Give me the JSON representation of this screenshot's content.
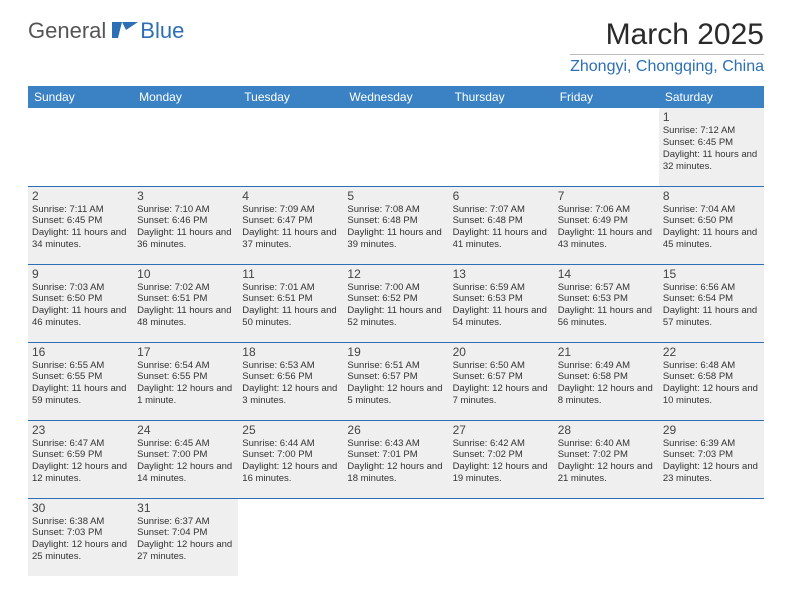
{
  "logo": {
    "part1": "General",
    "part2": "Blue"
  },
  "title": "March 2025",
  "location": "Zhongyi, Chongqing, China",
  "colors": {
    "header_bg": "#3a82c4",
    "accent": "#2d6fb5",
    "cell_bg": "#efefef",
    "page_bg": "#ffffff"
  },
  "daysOfWeek": [
    "Sunday",
    "Monday",
    "Tuesday",
    "Wednesday",
    "Thursday",
    "Friday",
    "Saturday"
  ],
  "weeks": [
    [
      null,
      null,
      null,
      null,
      null,
      null,
      {
        "n": "1",
        "sr": "7:12 AM",
        "ss": "6:45 PM",
        "dl": "11 hours and 32 minutes."
      }
    ],
    [
      {
        "n": "2",
        "sr": "7:11 AM",
        "ss": "6:45 PM",
        "dl": "11 hours and 34 minutes."
      },
      {
        "n": "3",
        "sr": "7:10 AM",
        "ss": "6:46 PM",
        "dl": "11 hours and 36 minutes."
      },
      {
        "n": "4",
        "sr": "7:09 AM",
        "ss": "6:47 PM",
        "dl": "11 hours and 37 minutes."
      },
      {
        "n": "5",
        "sr": "7:08 AM",
        "ss": "6:48 PM",
        "dl": "11 hours and 39 minutes."
      },
      {
        "n": "6",
        "sr": "7:07 AM",
        "ss": "6:48 PM",
        "dl": "11 hours and 41 minutes."
      },
      {
        "n": "7",
        "sr": "7:06 AM",
        "ss": "6:49 PM",
        "dl": "11 hours and 43 minutes."
      },
      {
        "n": "8",
        "sr": "7:04 AM",
        "ss": "6:50 PM",
        "dl": "11 hours and 45 minutes."
      }
    ],
    [
      {
        "n": "9",
        "sr": "7:03 AM",
        "ss": "6:50 PM",
        "dl": "11 hours and 46 minutes."
      },
      {
        "n": "10",
        "sr": "7:02 AM",
        "ss": "6:51 PM",
        "dl": "11 hours and 48 minutes."
      },
      {
        "n": "11",
        "sr": "7:01 AM",
        "ss": "6:51 PM",
        "dl": "11 hours and 50 minutes."
      },
      {
        "n": "12",
        "sr": "7:00 AM",
        "ss": "6:52 PM",
        "dl": "11 hours and 52 minutes."
      },
      {
        "n": "13",
        "sr": "6:59 AM",
        "ss": "6:53 PM",
        "dl": "11 hours and 54 minutes."
      },
      {
        "n": "14",
        "sr": "6:57 AM",
        "ss": "6:53 PM",
        "dl": "11 hours and 56 minutes."
      },
      {
        "n": "15",
        "sr": "6:56 AM",
        "ss": "6:54 PM",
        "dl": "11 hours and 57 minutes."
      }
    ],
    [
      {
        "n": "16",
        "sr": "6:55 AM",
        "ss": "6:55 PM",
        "dl": "11 hours and 59 minutes."
      },
      {
        "n": "17",
        "sr": "6:54 AM",
        "ss": "6:55 PM",
        "dl": "12 hours and 1 minute."
      },
      {
        "n": "18",
        "sr": "6:53 AM",
        "ss": "6:56 PM",
        "dl": "12 hours and 3 minutes."
      },
      {
        "n": "19",
        "sr": "6:51 AM",
        "ss": "6:57 PM",
        "dl": "12 hours and 5 minutes."
      },
      {
        "n": "20",
        "sr": "6:50 AM",
        "ss": "6:57 PM",
        "dl": "12 hours and 7 minutes."
      },
      {
        "n": "21",
        "sr": "6:49 AM",
        "ss": "6:58 PM",
        "dl": "12 hours and 8 minutes."
      },
      {
        "n": "22",
        "sr": "6:48 AM",
        "ss": "6:58 PM",
        "dl": "12 hours and 10 minutes."
      }
    ],
    [
      {
        "n": "23",
        "sr": "6:47 AM",
        "ss": "6:59 PM",
        "dl": "12 hours and 12 minutes."
      },
      {
        "n": "24",
        "sr": "6:45 AM",
        "ss": "7:00 PM",
        "dl": "12 hours and 14 minutes."
      },
      {
        "n": "25",
        "sr": "6:44 AM",
        "ss": "7:00 PM",
        "dl": "12 hours and 16 minutes."
      },
      {
        "n": "26",
        "sr": "6:43 AM",
        "ss": "7:01 PM",
        "dl": "12 hours and 18 minutes."
      },
      {
        "n": "27",
        "sr": "6:42 AM",
        "ss": "7:02 PM",
        "dl": "12 hours and 19 minutes."
      },
      {
        "n": "28",
        "sr": "6:40 AM",
        "ss": "7:02 PM",
        "dl": "12 hours and 21 minutes."
      },
      {
        "n": "29",
        "sr": "6:39 AM",
        "ss": "7:03 PM",
        "dl": "12 hours and 23 minutes."
      }
    ],
    [
      {
        "n": "30",
        "sr": "6:38 AM",
        "ss": "7:03 PM",
        "dl": "12 hours and 25 minutes."
      },
      {
        "n": "31",
        "sr": "6:37 AM",
        "ss": "7:04 PM",
        "dl": "12 hours and 27 minutes."
      },
      null,
      null,
      null,
      null,
      null
    ]
  ],
  "labels": {
    "sunrise": "Sunrise: ",
    "sunset": "Sunset: ",
    "daylight": "Daylight: "
  }
}
